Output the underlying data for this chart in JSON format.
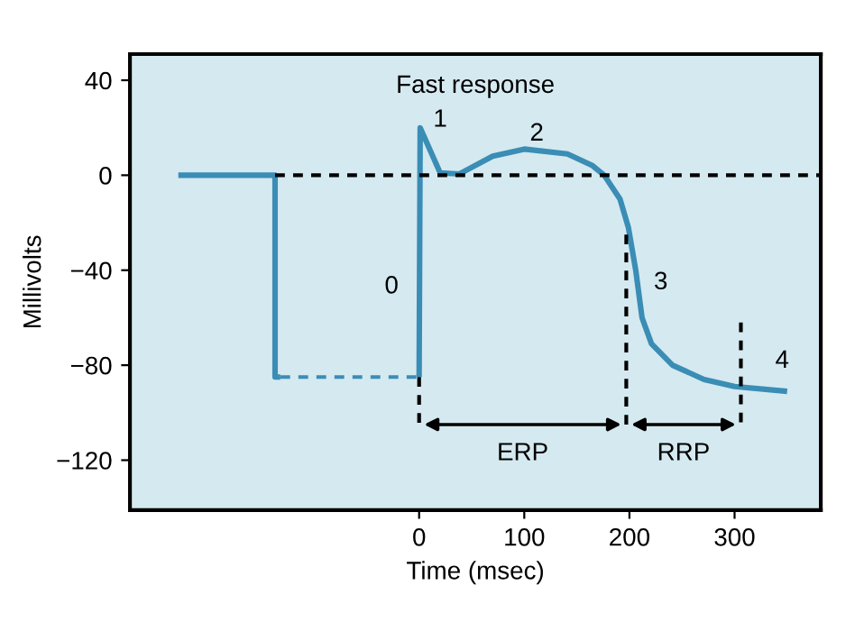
{
  "chart_data": {
    "type": "line",
    "xlabel": "Time (msec)",
    "ylabel": "Millivolts",
    "xlim": [
      -275,
      382
    ],
    "ylim": [
      -141,
      51
    ],
    "xticks": [
      0,
      100,
      200,
      300
    ],
    "yticks": [
      40,
      0,
      {
        "value": -40,
        "label": "−40"
      },
      {
        "value": -80,
        "label": "−80"
      },
      {
        "value": -120,
        "label": "−120"
      }
    ],
    "grid": false,
    "legend": false,
    "marker": "none",
    "series": [
      {
        "color": "#3a8db5",
        "line_style": "solid",
        "x": [
          -229,
          -137,
          -137,
          -132
        ],
        "values": [
          0,
          0,
          -85,
          -85
        ]
      },
      {
        "color": "#3a8db5",
        "line_style": "dashed",
        "x": [
          -132,
          0
        ],
        "values": [
          -85,
          -85
        ]
      },
      {
        "color": "#3a8db5",
        "line_style": "solid",
        "x": [
          0,
          1,
          20,
          38,
          70,
          100,
          141,
          165,
          176,
          191,
          199,
          206,
          212,
          221,
          241,
          271,
          300,
          350
        ],
        "values": [
          -85,
          20,
          1,
          0.5,
          8,
          11,
          9,
          4,
          0,
          -10,
          -22,
          -40,
          -60,
          -71,
          -80,
          -86,
          -89,
          -91
        ]
      },
      {
        "color": "#000000",
        "line_style": "dashed",
        "x": [
          -137,
          382
        ],
        "values": [
          0,
          0
        ]
      },
      {
        "color": "#000000",
        "line_style": "dashed",
        "x": [
          0,
          0
        ],
        "values": [
          -85,
          -105
        ]
      },
      {
        "color": "#000000",
        "line_style": "dashed",
        "x": [
          197,
          197
        ],
        "values": [
          -25,
          -105
        ]
      },
      {
        "color": "#000000",
        "line_style": "dashed",
        "x": [
          306,
          306
        ],
        "values": [
          -62,
          -105
        ]
      }
    ],
    "title": "Fast response",
    "annotations": [
      {
        "text": "1",
        "x": 1,
        "y": 20
      },
      {
        "text": "2",
        "x": 100,
        "y": 11
      },
      {
        "text": "0",
        "x": 0,
        "y": -47
      },
      {
        "text": "3",
        "x": 206,
        "y": -40
      },
      {
        "text": "4",
        "x": 350,
        "y": -91
      },
      "ERP",
      "RRP"
    ]
  }
}
